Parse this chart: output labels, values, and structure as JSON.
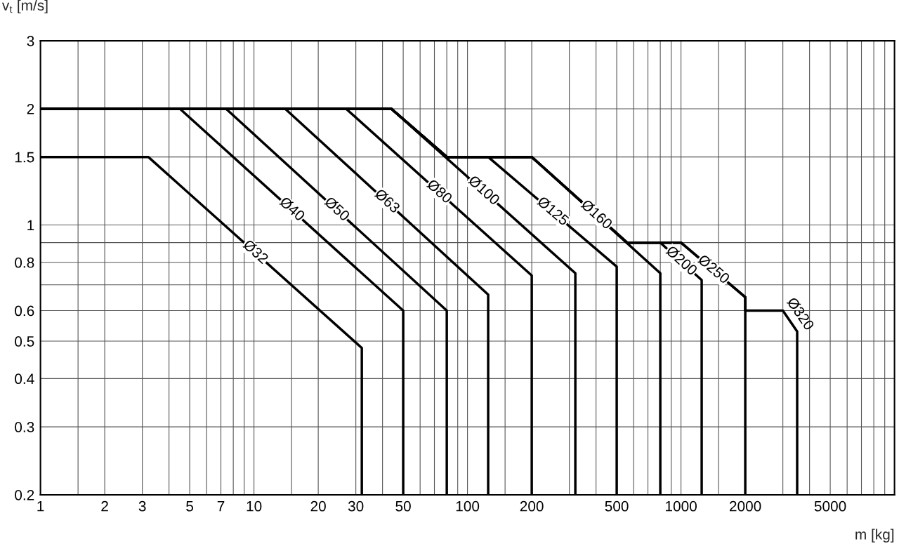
{
  "chart_data": {
    "type": "line",
    "xlabel": "m [kg]",
    "ylabel": "v$_{t}$ [m/s]",
    "log": "xy",
    "grid": true,
    "xlim": [
      1,
      10000
    ],
    "ylim": [
      0.2,
      3
    ],
    "xticks": [
      1,
      {
        "value": 1.5,
        "label": null
      },
      2,
      3,
      {
        "value": 4,
        "label": null
      },
      5,
      {
        "value": 6,
        "label": null
      },
      7,
      {
        "value": 8,
        "label": null
      },
      {
        "value": 9,
        "label": null
      },
      10,
      {
        "value": 15,
        "label": null
      },
      20,
      30,
      {
        "value": 40,
        "label": null
      },
      50,
      {
        "value": 60,
        "label": null
      },
      {
        "value": 70,
        "label": null
      },
      {
        "value": 80,
        "label": null
      },
      {
        "value": 90,
        "label": null
      },
      100,
      {
        "value": 150,
        "label": null
      },
      200,
      {
        "value": 300,
        "label": null
      },
      {
        "value": 400,
        "label": null
      },
      500,
      {
        "value": 600,
        "label": null
      },
      {
        "value": 700,
        "label": null
      },
      {
        "value": 800,
        "label": null
      },
      {
        "value": 900,
        "label": null
      },
      1000,
      {
        "value": 1500,
        "label": null
      },
      2000,
      {
        "value": 3000,
        "label": null
      },
      {
        "value": 4000,
        "label": null
      },
      5000,
      {
        "value": 6000,
        "label": null
      },
      {
        "value": 7000,
        "label": null
      },
      {
        "value": 8000,
        "label": null
      },
      {
        "value": 9000,
        "label": null
      }
    ],
    "yticks": [
      0.2,
      0.3,
      0.4,
      0.5,
      0.6,
      {
        "value": 0.7,
        "label": null
      },
      0.8,
      {
        "value": 0.9,
        "label": null
      },
      1,
      1.5,
      2,
      3
    ],
    "series": [
      {
        "name": "Ø32",
        "color": "#000000",
        "x": [
          1,
          3.2,
          32,
          32
        ],
        "values": [
          1.5,
          1.5,
          0.48,
          0.2
        ]
      },
      {
        "name": "Ø40",
        "color": "#000000",
        "x": [
          1,
          4.5,
          50,
          50
        ],
        "values": [
          2,
          2,
          0.6,
          0.2
        ]
      },
      {
        "name": "Ø50",
        "color": "#000000",
        "x": [
          1,
          7.4,
          80,
          80
        ],
        "values": [
          2,
          2,
          0.6,
          0.2
        ]
      },
      {
        "name": "Ø63",
        "color": "#000000",
        "x": [
          1,
          14,
          125,
          125
        ],
        "values": [
          2,
          2,
          0.66,
          0.2
        ]
      },
      {
        "name": "Ø80",
        "color": "#000000",
        "x": [
          1,
          27,
          200,
          200
        ],
        "values": [
          2,
          2,
          0.74,
          0.2
        ]
      },
      {
        "name": "Ø100",
        "color": "#000000",
        "x": [
          1,
          44,
          320,
          320
        ],
        "values": [
          2,
          2,
          0.75,
          0.2
        ]
      },
      {
        "name": "Ø125",
        "color": "#000000",
        "x": [
          1,
          44,
          80,
          125,
          500,
          500
        ],
        "values": [
          2,
          2,
          1.5,
          1.5,
          0.78,
          0.2
        ]
      },
      {
        "name": "Ø160",
        "color": "#000000",
        "x": [
          1,
          44,
          80,
          200,
          800,
          800
        ],
        "values": [
          2,
          2,
          1.5,
          1.5,
          0.75,
          0.2
        ]
      },
      {
        "name": "Ø200",
        "color": "#000000",
        "x": [
          1,
          44,
          80,
          200,
          560,
          800,
          1250,
          1250
        ],
        "values": [
          2,
          2,
          1.5,
          1.5,
          0.9,
          0.9,
          0.72,
          0.2
        ]
      },
      {
        "name": "Ø250",
        "color": "#000000",
        "x": [
          1,
          44,
          80,
          200,
          560,
          1000,
          2000,
          2000
        ],
        "values": [
          2,
          2,
          1.5,
          1.5,
          0.9,
          0.9,
          0.65,
          0.2
        ]
      },
      {
        "name": "Ø320",
        "color": "#000000",
        "x": [
          1,
          44,
          80,
          200,
          560,
          1000,
          2000,
          2000,
          3000,
          3500,
          3500
        ],
        "values": [
          2,
          2,
          1.5,
          1.5,
          0.9,
          0.9,
          0.65,
          0.6,
          0.6,
          0.53,
          0.2
        ]
      }
    ]
  }
}
